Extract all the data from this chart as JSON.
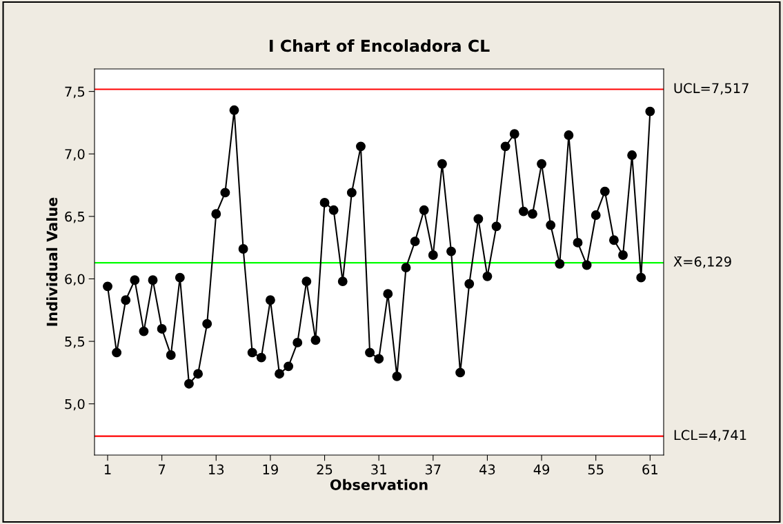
{
  "chart_data": {
    "type": "line",
    "title": "I Chart of Encoladora CL",
    "xlabel": "Observation",
    "ylabel": "Individual Value",
    "x": [
      1,
      2,
      3,
      4,
      5,
      6,
      7,
      8,
      9,
      10,
      11,
      12,
      13,
      14,
      15,
      16,
      17,
      18,
      19,
      20,
      21,
      22,
      23,
      24,
      25,
      26,
      27,
      28,
      29,
      30,
      31,
      32,
      33,
      34,
      35,
      36,
      37,
      38,
      39,
      40,
      41,
      42,
      43,
      44,
      45,
      46,
      47,
      48,
      49,
      50,
      51,
      52,
      53,
      54,
      55,
      56,
      57,
      58,
      59,
      60,
      61
    ],
    "series": [
      {
        "color": "#000000",
        "values": [
          5.94,
          5.41,
          5.83,
          5.99,
          5.58,
          5.99,
          5.6,
          5.39,
          6.01,
          5.16,
          5.24,
          5.64,
          6.52,
          6.69,
          7.35,
          6.24,
          5.41,
          5.37,
          5.83,
          5.24,
          5.3,
          5.49,
          5.98,
          5.51,
          6.61,
          6.55,
          5.98,
          6.69,
          7.06,
          5.41,
          5.36,
          5.88,
          5.22,
          6.09,
          6.3,
          6.55,
          6.19,
          6.92,
          6.22,
          5.25,
          5.96,
          6.48,
          6.02,
          6.42,
          7.06,
          7.16,
          6.54,
          6.52,
          6.92,
          6.43,
          6.12,
          7.15,
          6.29,
          6.11,
          6.51,
          6.7,
          6.31,
          6.19,
          6.99,
          6.01,
          7.34
        ]
      }
    ],
    "marker": "circle",
    "line_style": "solid",
    "grid": false,
    "legend": false,
    "xlim": [
      -0.45,
      62.5
    ],
    "ylim": [
      4.59,
      7.68
    ],
    "xticks": [
      1,
      7,
      13,
      19,
      25,
      31,
      37,
      43,
      49,
      55,
      61
    ],
    "yticks": [
      {
        "value": 5.0,
        "label": "5,0"
      },
      {
        "value": 5.5,
        "label": "5,5"
      },
      {
        "value": 6.0,
        "label": "6,0"
      },
      {
        "value": 6.5,
        "label": "6,5"
      },
      {
        "value": 7.0,
        "label": "7,0"
      },
      {
        "value": 7.5,
        "label": "7,5"
      }
    ],
    "ref_lines": [
      {
        "axis": "y",
        "value": 7.517,
        "label": "UCL=7,517",
        "color": "#ff0000"
      },
      {
        "axis": "y",
        "value": 6.129,
        "label": "X̄=6,129",
        "color": "#00ff00"
      },
      {
        "axis": "y",
        "value": 4.741,
        "label": "LCL=4,741",
        "color": "#ff0000"
      }
    ]
  }
}
